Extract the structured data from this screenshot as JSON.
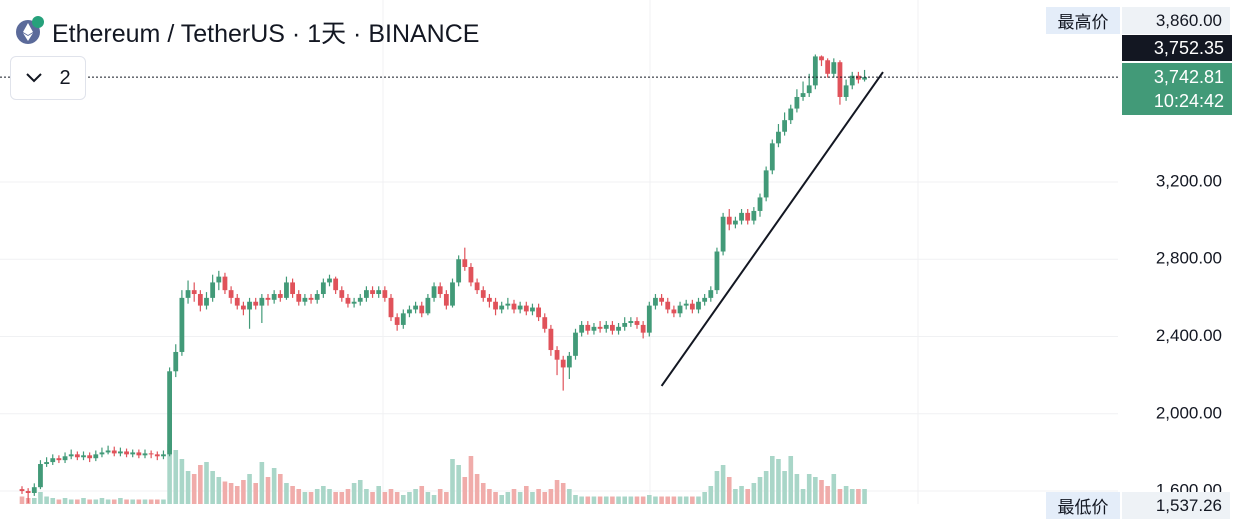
{
  "header": {
    "title": "Ethereum / TetherUS · 1天 · BINANCE",
    "indicator_count": "2"
  },
  "chart_data": {
    "type": "candlestick",
    "open": [
      1610,
      1600,
      1590,
      1620,
      1740,
      1750,
      1770,
      1760,
      1780,
      1790,
      1775,
      1785,
      1770,
      1790,
      1800,
      1810,
      1795,
      1805,
      1790,
      1800,
      1785,
      1795,
      1790,
      1780,
      1790,
      2220,
      2320,
      2600,
      2640,
      2620,
      2560,
      2600,
      2680,
      2710,
      2640,
      2600,
      2560,
      2540,
      2580,
      2560,
      2600,
      2590,
      2620,
      2600,
      2680,
      2620,
      2580,
      2600,
      2590,
      2620,
      2680,
      2700,
      2640,
      2600,
      2570,
      2580,
      2600,
      2640,
      2620,
      2640,
      2600,
      2500,
      2460,
      2520,
      2540,
      2560,
      2520,
      2600,
      2660,
      2620,
      2560,
      2680,
      2800,
      2760,
      2680,
      2640,
      2600,
      2580,
      2540,
      2560,
      2570,
      2540,
      2560,
      2530,
      2550,
      2500,
      2440,
      2330,
      2280,
      2240,
      2300,
      2420,
      2460,
      2430,
      2450,
      2440,
      2460,
      2430,
      2450,
      2470,
      2480,
      2460,
      2420,
      2560,
      2600,
      2580,
      2540,
      2520,
      2560,
      2570,
      2540,
      2580,
      2600,
      2640,
      2840,
      3020,
      2980,
      3000,
      3040,
      3000,
      3050,
      3120,
      3260,
      3400,
      3460,
      3520,
      3580,
      3640,
      3660,
      3700,
      3850,
      3830,
      3760,
      3820,
      3640,
      3700,
      3750,
      3730
    ],
    "high": [
      1625,
      1615,
      1640,
      1760,
      1775,
      1790,
      1785,
      1800,
      1815,
      1805,
      1805,
      1800,
      1810,
      1825,
      1835,
      1830,
      1825,
      1820,
      1815,
      1815,
      1815,
      1810,
      1805,
      1810,
      2240,
      2360,
      2640,
      2690,
      2680,
      2640,
      2630,
      2720,
      2740,
      2730,
      2660,
      2620,
      2580,
      2600,
      2600,
      2620,
      2620,
      2640,
      2640,
      2710,
      2700,
      2640,
      2620,
      2620,
      2640,
      2700,
      2720,
      2710,
      2660,
      2620,
      2600,
      2620,
      2660,
      2660,
      2660,
      2660,
      2620,
      2520,
      2540,
      2560,
      2580,
      2580,
      2620,
      2680,
      2680,
      2640,
      2700,
      2820,
      2860,
      2780,
      2700,
      2660,
      2620,
      2600,
      2580,
      2600,
      2590,
      2580,
      2580,
      2570,
      2570,
      2520,
      2460,
      2350,
      2300,
      2320,
      2440,
      2480,
      2480,
      2470,
      2480,
      2480,
      2480,
      2470,
      2500,
      2500,
      2500,
      2480,
      2580,
      2620,
      2620,
      2600,
      2560,
      2580,
      2590,
      2590,
      2600,
      2620,
      2660,
      2860,
      3040,
      3060,
      3020,
      3060,
      3060,
      3070,
      3140,
      3280,
      3420,
      3500,
      3560,
      3600,
      3680,
      3720,
      3760,
      3860,
      3855,
      3840,
      3840,
      3830,
      3730,
      3770,
      3770,
      3780
    ],
    "low": [
      1585,
      1537.26,
      1575,
      1610,
      1725,
      1735,
      1745,
      1745,
      1765,
      1760,
      1760,
      1750,
      1755,
      1775,
      1790,
      1780,
      1780,
      1775,
      1775,
      1770,
      1770,
      1770,
      1760,
      1765,
      1780,
      2190,
      2300,
      2570,
      2580,
      2530,
      2540,
      2580,
      2640,
      2620,
      2570,
      2540,
      2510,
      2440,
      2540,
      2470,
      2560,
      2570,
      2580,
      2590,
      2600,
      2560,
      2560,
      2570,
      2570,
      2600,
      2660,
      2620,
      2580,
      2550,
      2550,
      2560,
      2580,
      2600,
      2600,
      2580,
      2480,
      2430,
      2440,
      2500,
      2520,
      2500,
      2510,
      2580,
      2600,
      2540,
      2550,
      2660,
      2740,
      2660,
      2620,
      2580,
      2550,
      2510,
      2520,
      2540,
      2520,
      2520,
      2510,
      2510,
      2480,
      2420,
      2300,
      2200,
      2120,
      2180,
      2280,
      2400,
      2410,
      2410,
      2420,
      2420,
      2410,
      2410,
      2430,
      2450,
      2440,
      2390,
      2400,
      2540,
      2560,
      2520,
      2500,
      2500,
      2540,
      2520,
      2520,
      2560,
      2580,
      2620,
      2820,
      2950,
      2960,
      2980,
      2980,
      2980,
      3020,
      3100,
      3240,
      3380,
      3440,
      3500,
      3560,
      3620,
      3640,
      3680,
      3800,
      3740,
      3740,
      3600,
      3620,
      3680,
      3710,
      3720
    ],
    "close": [
      1600,
      1590,
      1620,
      1740,
      1750,
      1770,
      1760,
      1780,
      1790,
      1775,
      1785,
      1770,
      1790,
      1800,
      1810,
      1795,
      1805,
      1790,
      1800,
      1785,
      1795,
      1790,
      1780,
      1790,
      2220,
      2320,
      2600,
      2640,
      2620,
      2560,
      2600,
      2680,
      2710,
      2640,
      2600,
      2560,
      2540,
      2580,
      2560,
      2600,
      2590,
      2620,
      2600,
      2680,
      2620,
      2580,
      2600,
      2590,
      2620,
      2680,
      2700,
      2640,
      2600,
      2570,
      2580,
      2600,
      2640,
      2620,
      2640,
      2600,
      2500,
      2460,
      2520,
      2540,
      2560,
      2520,
      2600,
      2660,
      2620,
      2560,
      2680,
      2800,
      2760,
      2680,
      2640,
      2600,
      2580,
      2540,
      2560,
      2570,
      2540,
      2560,
      2530,
      2550,
      2500,
      2440,
      2330,
      2280,
      2240,
      2300,
      2420,
      2460,
      2430,
      2450,
      2440,
      2460,
      2430,
      2450,
      2470,
      2480,
      2460,
      2420,
      2560,
      2600,
      2580,
      2540,
      2520,
      2560,
      2570,
      2540,
      2580,
      2600,
      2640,
      2840,
      3020,
      2980,
      3000,
      3040,
      3000,
      3050,
      3120,
      3260,
      3400,
      3460,
      3520,
      3580,
      3640,
      3660,
      3700,
      3850,
      3830,
      3760,
      3820,
      3640,
      3700,
      3750,
      3730,
      3742.81
    ],
    "volume": [
      5,
      4,
      4,
      8,
      5,
      4,
      3,
      4,
      3,
      3,
      4,
      3,
      3,
      4,
      3,
      3,
      4,
      3,
      3,
      3,
      3,
      3,
      3,
      3,
      40,
      36,
      30,
      22,
      20,
      26,
      28,
      22,
      18,
      15,
      14,
      12,
      16,
      20,
      14,
      28,
      18,
      24,
      20,
      14,
      12,
      10,
      8,
      8,
      10,
      12,
      10,
      8,
      8,
      10,
      14,
      16,
      10,
      8,
      12,
      8,
      10,
      8,
      6,
      8,
      10,
      12,
      8,
      6,
      10,
      8,
      30,
      26,
      18,
      32,
      20,
      14,
      10,
      8,
      6,
      8,
      10,
      8,
      12,
      8,
      10,
      8,
      10,
      16,
      14,
      10,
      6,
      5,
      5,
      5,
      5,
      5,
      5,
      5,
      5,
      5,
      5,
      5,
      6,
      5,
      5,
      5,
      5,
      5,
      5,
      5,
      5,
      8,
      12,
      22,
      26,
      18,
      10,
      12,
      10,
      14,
      18,
      22,
      32,
      30,
      22,
      32,
      20,
      10,
      20,
      18,
      16,
      12,
      20,
      10,
      12,
      10,
      10,
      10
    ],
    "volume_ylim": [
      0,
      100
    ],
    "up_color": "#429a78",
    "down_color": "#e0525a",
    "volume_up_color": "#a9d6c8",
    "volume_down_color": "#f0acaa",
    "ylim": [
      1533,
      4142
    ],
    "yticks": [
      {
        "value": 1600,
        "label": "1,600.00"
      },
      {
        "value": 2000,
        "label": "2,000.00"
      },
      {
        "value": 2400,
        "label": "2,400.00"
      },
      {
        "value": 2800,
        "label": "2,800.00"
      },
      {
        "value": 3200,
        "label": "3,200.00"
      }
    ],
    "grid": true,
    "trendline": {
      "x": [
        104,
        140
      ],
      "y": [
        2144,
        3769
      ]
    },
    "current_price": {
      "value": 3742.81,
      "label": "3,742.81",
      "countdown": "10:24:42"
    },
    "crosshair_price": "3,752.35",
    "highest": {
      "label": "最高价",
      "value": "3,860.00"
    },
    "lowest": {
      "label": "最低价",
      "value": "1,537.26"
    }
  }
}
